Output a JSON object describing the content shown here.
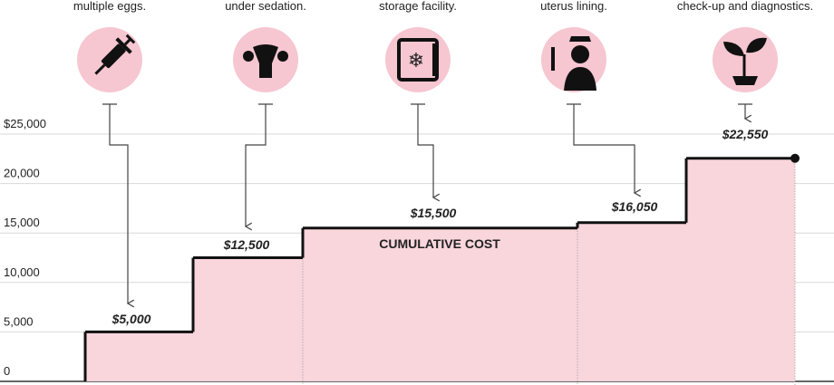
{
  "chart_data": {
    "type": "step",
    "captions": [
      "multiple eggs.",
      "under sedation.",
      "storage facility.",
      "uterus lining.",
      "check-up and diagnostics."
    ],
    "values": [
      5000,
      12500,
      15500,
      16050,
      22550
    ],
    "value_labels": [
      "$5,000",
      "$12,500",
      "$15,500",
      "$16,050",
      "$22,550"
    ],
    "annotation": "CUMULATIVE COST",
    "color": "#f9d5dc",
    "line_color": "#111111",
    "ylim": [
      0,
      25000
    ],
    "yticks": [
      {
        "value": 0,
        "label": "0"
      },
      {
        "value": 5000,
        "label": "5,000"
      },
      {
        "value": 10000,
        "label": "10,000"
      },
      {
        "value": 15000,
        "label": "15,000"
      },
      {
        "value": 20000,
        "label": "20,000"
      },
      {
        "value": 25000,
        "label": "$25,000"
      }
    ],
    "grid": true
  }
}
